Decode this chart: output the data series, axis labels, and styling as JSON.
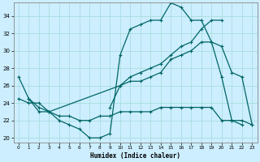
{
  "title": "",
  "xlabel": "Humidex (Indice chaleur)",
  "bg_color": "#cceeff",
  "grid_color": "#aadddd",
  "line_color": "#006666",
  "xlim": [
    -0.5,
    23.5
  ],
  "ylim": [
    19.5,
    35.5
  ],
  "yticks": [
    20,
    22,
    24,
    26,
    28,
    30,
    32,
    34
  ],
  "xticks": [
    0,
    1,
    2,
    3,
    4,
    5,
    6,
    7,
    8,
    9,
    10,
    11,
    12,
    13,
    14,
    15,
    16,
    17,
    18,
    19,
    20,
    21,
    22,
    23
  ],
  "line1_x": [
    0,
    1,
    2,
    3,
    4,
    5,
    6,
    7,
    8,
    9,
    10,
    11,
    12,
    13,
    14,
    15,
    16,
    17,
    18,
    19,
    20,
    21,
    22
  ],
  "line1_y": [
    27,
    24.5,
    23,
    23,
    22,
    21.5,
    21,
    20,
    20,
    20.5,
    29.5,
    32.5,
    33,
    33.5,
    33.5,
    35.5,
    35,
    33.5,
    33.5,
    31,
    27,
    22,
    21.5
  ],
  "line2_x": [
    1,
    2,
    3,
    4,
    5,
    6,
    7,
    8,
    9,
    10,
    11,
    12,
    13,
    14,
    15,
    16,
    17,
    18,
    19,
    20,
    21,
    22,
    23
  ],
  "line2_y": [
    24.5,
    23.5,
    23,
    22.5,
    22.5,
    22,
    22,
    22.5,
    22.5,
    23,
    23,
    23,
    23,
    23.5,
    23.5,
    23.5,
    23.5,
    23.5,
    23.5,
    22,
    22,
    22,
    21.5
  ],
  "line3_x": [
    0,
    1,
    2,
    3,
    10,
    11,
    12,
    13,
    14,
    15,
    16,
    17,
    18,
    19,
    20,
    21,
    22,
    23
  ],
  "line3_y": [
    24.5,
    24,
    24,
    23,
    26,
    26.5,
    26.5,
    27,
    27.5,
    29,
    29.5,
    30,
    31,
    31,
    30.5,
    27.5,
    27,
    21.5
  ],
  "line4_x": [
    9,
    10,
    11,
    12,
    13,
    14,
    15,
    16,
    17,
    18,
    19,
    20
  ],
  "line4_y": [
    23.5,
    26,
    27,
    27.5,
    28,
    28.5,
    29.5,
    30.5,
    31,
    32.5,
    33.5,
    33.5
  ]
}
